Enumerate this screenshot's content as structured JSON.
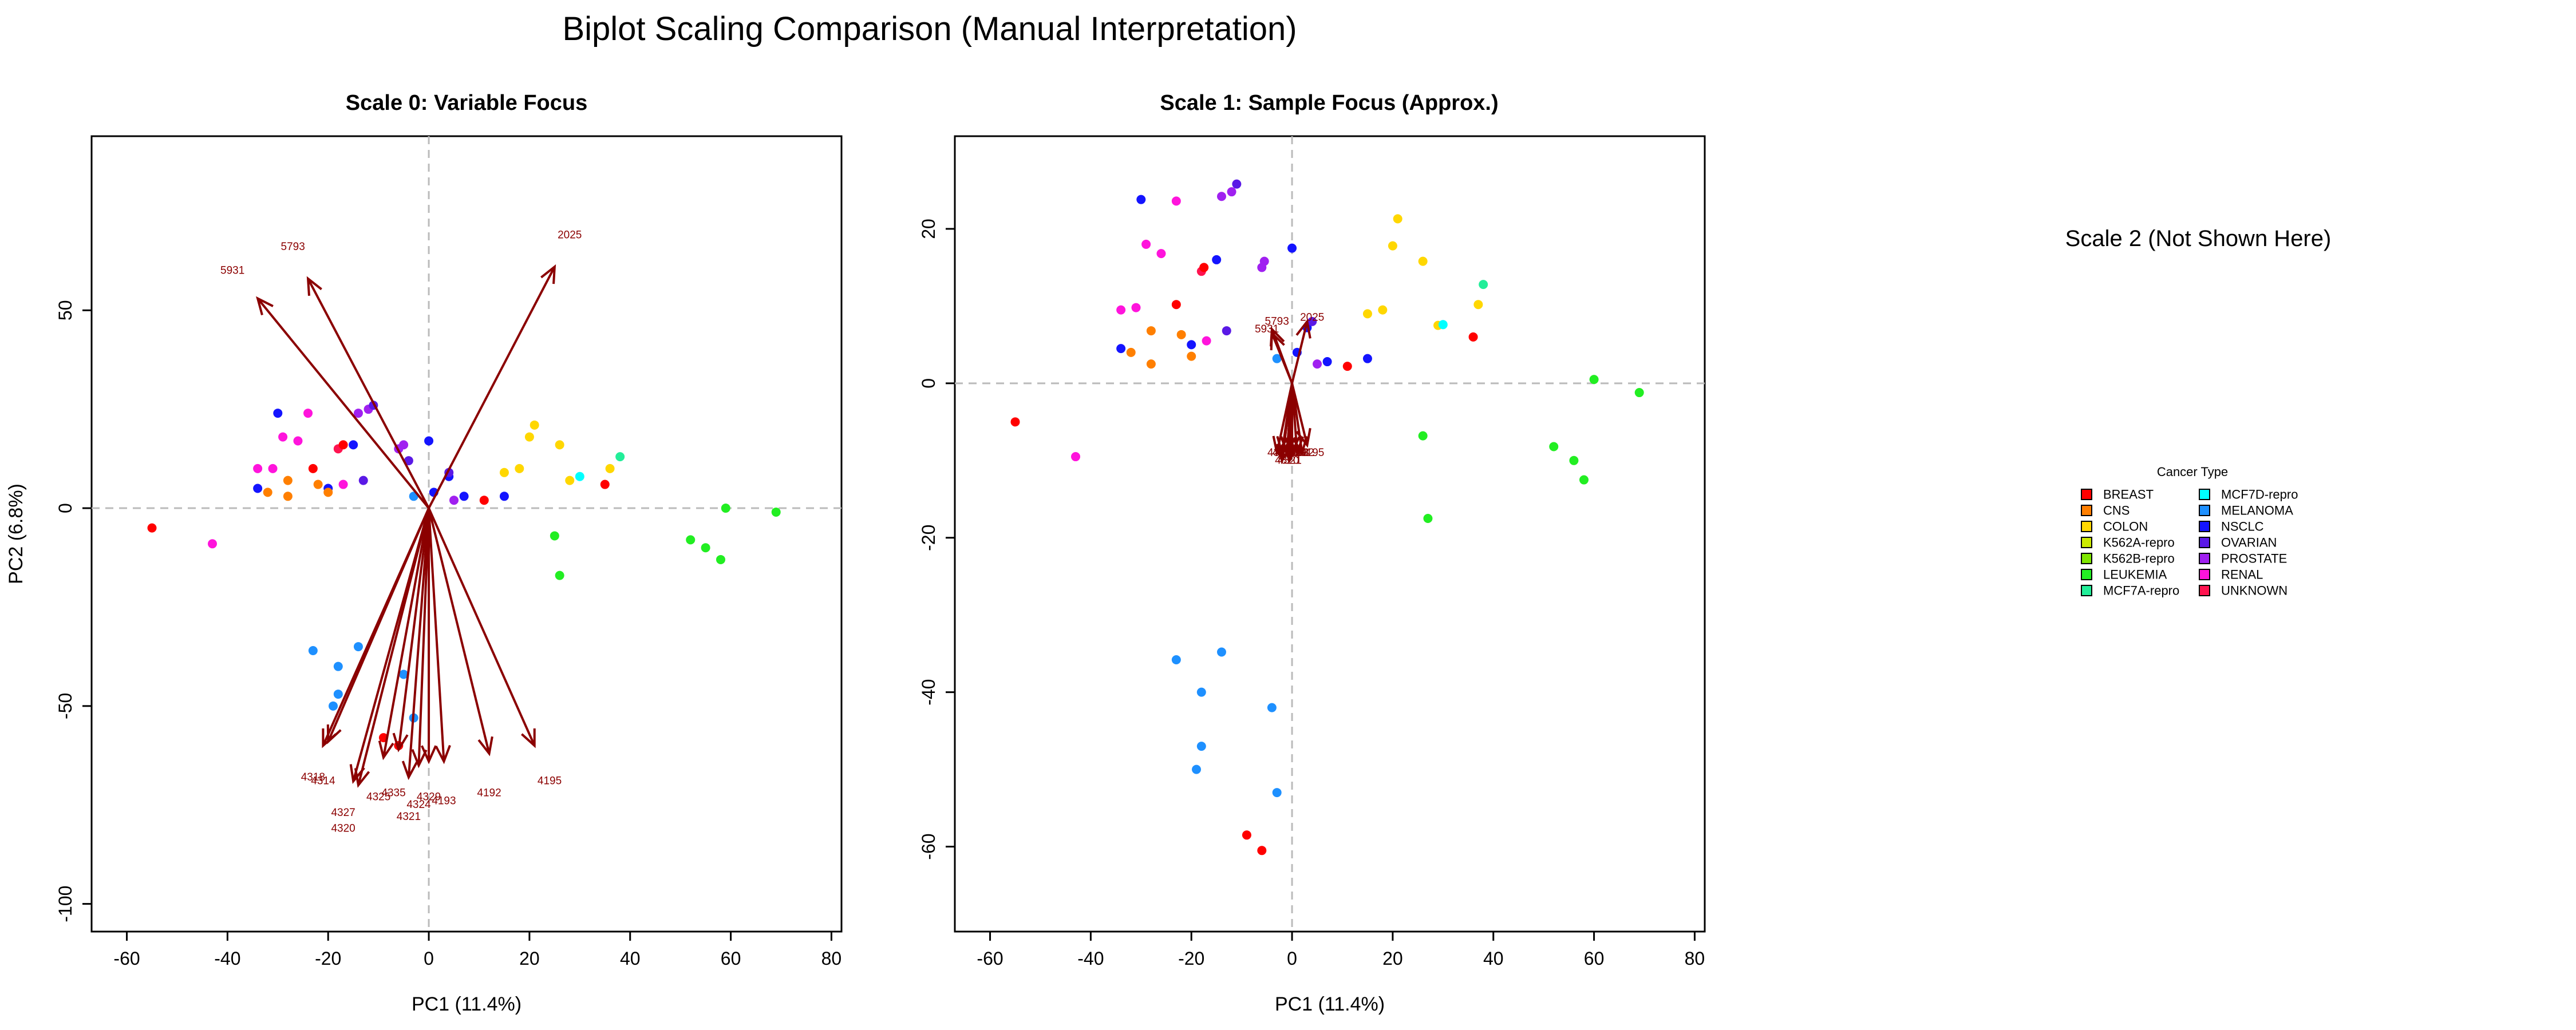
{
  "title": "Biplot Scaling Comparison (Manual Interpretation)",
  "placeholder_text": "Scale 2 (Not Shown Here)",
  "chart_data": [
    {
      "type": "scatter",
      "title": "Scale 0: Variable Focus",
      "xlabel": "PC1 (11.4%)",
      "ylabel": "PC2 (6.8%)",
      "xlim": [
        -67,
        82
      ],
      "ylim": [
        -107,
        94
      ],
      "xticks": [
        -60,
        -40,
        -20,
        0,
        20,
        40,
        60,
        80
      ],
      "yticks": [
        -100,
        -50,
        0,
        50
      ],
      "points": [
        {
          "x": -55,
          "y": -5,
          "c": "BREAST"
        },
        {
          "x": -43,
          "y": -9,
          "c": "RENAL"
        },
        {
          "x": -34,
          "y": 5,
          "c": "NSCLC"
        },
        {
          "x": -34,
          "y": 10,
          "c": "RENAL"
        },
        {
          "x": -32,
          "y": 4,
          "c": "CNS"
        },
        {
          "x": -31,
          "y": 10,
          "c": "RENAL"
        },
        {
          "x": -30,
          "y": 24,
          "c": "NSCLC"
        },
        {
          "x": -29,
          "y": 18,
          "c": "RENAL"
        },
        {
          "x": -28,
          "y": 7,
          "c": "CNS"
        },
        {
          "x": -28,
          "y": 3,
          "c": "CNS"
        },
        {
          "x": -26,
          "y": 17,
          "c": "RENAL"
        },
        {
          "x": -24,
          "y": 24,
          "c": "RENAL"
        },
        {
          "x": -23,
          "y": 10,
          "c": "BREAST"
        },
        {
          "x": -22,
          "y": 6,
          "c": "CNS"
        },
        {
          "x": -20,
          "y": 5,
          "c": "NSCLC"
        },
        {
          "x": -20,
          "y": 4,
          "c": "CNS"
        },
        {
          "x": -18,
          "y": 15,
          "c": "UNKNOWN"
        },
        {
          "x": -17,
          "y": 16,
          "c": "BREAST"
        },
        {
          "x": -17,
          "y": 6,
          "c": "RENAL"
        },
        {
          "x": -15,
          "y": 16,
          "c": "NSCLC"
        },
        {
          "x": -14,
          "y": 24,
          "c": "PROSTATE"
        },
        {
          "x": -13,
          "y": 7,
          "c": "OVARIAN"
        },
        {
          "x": -12,
          "y": 25,
          "c": "PROSTATE"
        },
        {
          "x": -11,
          "y": 26,
          "c": "OVARIAN"
        },
        {
          "x": -6,
          "y": 15,
          "c": "PROSTATE"
        },
        {
          "x": -5,
          "y": 16,
          "c": "PROSTATE"
        },
        {
          "x": -4,
          "y": 12,
          "c": "OVARIAN"
        },
        {
          "x": -3,
          "y": 3,
          "c": "MELANOMA"
        },
        {
          "x": 0,
          "y": 17,
          "c": "NSCLC"
        },
        {
          "x": 1,
          "y": 4,
          "c": "NSCLC"
        },
        {
          "x": 4,
          "y": 8,
          "c": "NSCLC"
        },
        {
          "x": 4,
          "y": 9,
          "c": "OVARIAN"
        },
        {
          "x": 5,
          "y": 2,
          "c": "PROSTATE"
        },
        {
          "x": 7,
          "y": 3,
          "c": "NSCLC"
        },
        {
          "x": 11,
          "y": 2,
          "c": "BREAST"
        },
        {
          "x": 15,
          "y": 3,
          "c": "NSCLC"
        },
        {
          "x": 15,
          "y": 9,
          "c": "COLON"
        },
        {
          "x": 18,
          "y": 10,
          "c": "COLON"
        },
        {
          "x": 20,
          "y": 18,
          "c": "COLON"
        },
        {
          "x": 21,
          "y": 21,
          "c": "COLON"
        },
        {
          "x": 26,
          "y": 16,
          "c": "COLON"
        },
        {
          "x": 28,
          "y": 7,
          "c": "COLON"
        },
        {
          "x": 30,
          "y": 8,
          "c": "MCF7D-repro"
        },
        {
          "x": 35,
          "y": 6,
          "c": "BREAST"
        },
        {
          "x": 36,
          "y": 10,
          "c": "COLON"
        },
        {
          "x": 38,
          "y": 13,
          "c": "MCF7A-repro"
        },
        {
          "x": 25,
          "y": -7,
          "c": "LEUKEMIA"
        },
        {
          "x": 26,
          "y": -17,
          "c": "LEUKEMIA"
        },
        {
          "x": 52,
          "y": -8,
          "c": "LEUKEMIA"
        },
        {
          "x": 55,
          "y": -10,
          "c": "LEUKEMIA"
        },
        {
          "x": 58,
          "y": -13,
          "c": "LEUKEMIA"
        },
        {
          "x": 59,
          "y": 0,
          "c": "LEUKEMIA"
        },
        {
          "x": 69,
          "y": -1,
          "c": "LEUKEMIA"
        },
        {
          "x": -23,
          "y": -36,
          "c": "MELANOMA"
        },
        {
          "x": -18,
          "y": -40,
          "c": "MELANOMA"
        },
        {
          "x": -14,
          "y": -35,
          "c": "MELANOMA"
        },
        {
          "x": -18,
          "y": -47,
          "c": "MELANOMA"
        },
        {
          "x": -19,
          "y": -50,
          "c": "MELANOMA"
        },
        {
          "x": -5,
          "y": -42,
          "c": "MELANOMA"
        },
        {
          "x": -3,
          "y": -53,
          "c": "MELANOMA"
        },
        {
          "x": -9,
          "y": -58,
          "c": "BREAST"
        },
        {
          "x": -6,
          "y": -60,
          "c": "BREAST"
        }
      ],
      "arrows": [
        {
          "x": -34,
          "y": 53,
          "label": "5931",
          "lx": -39,
          "ly": 60
        },
        {
          "x": -24,
          "y": 58,
          "label": "5793",
          "lx": -27,
          "ly": 66
        },
        {
          "x": 25,
          "y": 61,
          "label": "2025",
          "lx": 28,
          "ly": 69
        },
        {
          "x": -21,
          "y": -60,
          "label": "4318",
          "lx": -23,
          "ly": -68
        },
        {
          "x": -20,
          "y": -59,
          "label": "4314",
          "lx": -21,
          "ly": -69
        },
        {
          "x": -14,
          "y": -70,
          "label": "4327",
          "lx": -17,
          "ly": -77
        },
        {
          "x": -15,
          "y": -69,
          "label": "4320",
          "lx": -17,
          "ly": -81
        },
        {
          "x": -9,
          "y": -63,
          "label": "4325",
          "lx": -10,
          "ly": -73
        },
        {
          "x": -6,
          "y": -61,
          "label": "4335",
          "lx": -7,
          "ly": -72
        },
        {
          "x": -4,
          "y": -68,
          "label": "4321",
          "lx": -4,
          "ly": -78
        },
        {
          "x": -2,
          "y": -65,
          "label": "4324",
          "lx": -2,
          "ly": -75
        },
        {
          "x": 0,
          "y": -64,
          "label": "4329",
          "lx": 0,
          "ly": -73
        },
        {
          "x": 3,
          "y": -64,
          "label": "4193",
          "lx": 3,
          "ly": -74
        },
        {
          "x": 12,
          "y": -62,
          "label": "4192",
          "lx": 12,
          "ly": -72
        },
        {
          "x": 21,
          "y": -60,
          "label": "4195",
          "lx": 24,
          "ly": -69
        }
      ]
    },
    {
      "type": "scatter",
      "title": "Scale 1: Sample Focus (Approx.)",
      "xlabel": "PC1 (11.4%)",
      "ylabel": "",
      "xlim": [
        -67,
        82
      ],
      "ylim": [
        -71,
        32
      ],
      "xticks": [
        -60,
        -40,
        -20,
        0,
        20,
        40,
        60,
        80
      ],
      "yticks": [
        -60,
        -40,
        -20,
        0,
        20
      ],
      "points": [
        {
          "x": -55,
          "y": -5,
          "c": "BREAST"
        },
        {
          "x": -43,
          "y": -9.5,
          "c": "RENAL"
        },
        {
          "x": -34,
          "y": 4.5,
          "c": "NSCLC"
        },
        {
          "x": -34,
          "y": 9.5,
          "c": "RENAL"
        },
        {
          "x": -32,
          "y": 4,
          "c": "CNS"
        },
        {
          "x": -31,
          "y": 9.8,
          "c": "RENAL"
        },
        {
          "x": -30,
          "y": 23.8,
          "c": "NSCLC"
        },
        {
          "x": -29,
          "y": 18,
          "c": "RENAL"
        },
        {
          "x": -28,
          "y": 6.8,
          "c": "CNS"
        },
        {
          "x": -28,
          "y": 2.5,
          "c": "CNS"
        },
        {
          "x": -26,
          "y": 16.8,
          "c": "RENAL"
        },
        {
          "x": -23,
          "y": 23.6,
          "c": "RENAL"
        },
        {
          "x": -23,
          "y": 10.2,
          "c": "BREAST"
        },
        {
          "x": -22,
          "y": 6.3,
          "c": "CNS"
        },
        {
          "x": -20,
          "y": 5,
          "c": "NSCLC"
        },
        {
          "x": -20,
          "y": 3.5,
          "c": "CNS"
        },
        {
          "x": -18,
          "y": 14.5,
          "c": "UNKNOWN"
        },
        {
          "x": -17.5,
          "y": 15,
          "c": "BREAST"
        },
        {
          "x": -17,
          "y": 5.5,
          "c": "RENAL"
        },
        {
          "x": -15,
          "y": 16,
          "c": "NSCLC"
        },
        {
          "x": -14,
          "y": 24.2,
          "c": "PROSTATE"
        },
        {
          "x": -13,
          "y": 6.8,
          "c": "OVARIAN"
        },
        {
          "x": -12,
          "y": 24.8,
          "c": "PROSTATE"
        },
        {
          "x": -11,
          "y": 25.8,
          "c": "OVARIAN"
        },
        {
          "x": -6,
          "y": 15,
          "c": "PROSTATE"
        },
        {
          "x": -5.5,
          "y": 15.8,
          "c": "PROSTATE"
        },
        {
          "x": -3,
          "y": 3.2,
          "c": "MELANOMA"
        },
        {
          "x": 0,
          "y": 17.5,
          "c": "NSCLC"
        },
        {
          "x": 1,
          "y": 4,
          "c": "NSCLC"
        },
        {
          "x": 3,
          "y": 7.2,
          "c": "NSCLC"
        },
        {
          "x": 4,
          "y": 8,
          "c": "OVARIAN"
        },
        {
          "x": 5,
          "y": 2.5,
          "c": "PROSTATE"
        },
        {
          "x": 7,
          "y": 2.8,
          "c": "NSCLC"
        },
        {
          "x": 11,
          "y": 2.2,
          "c": "BREAST"
        },
        {
          "x": 15,
          "y": 3.2,
          "c": "NSCLC"
        },
        {
          "x": 15,
          "y": 9,
          "c": "COLON"
        },
        {
          "x": 18,
          "y": 9.5,
          "c": "COLON"
        },
        {
          "x": 20,
          "y": 17.8,
          "c": "COLON"
        },
        {
          "x": 21,
          "y": 21.3,
          "c": "COLON"
        },
        {
          "x": 26,
          "y": 15.8,
          "c": "COLON"
        },
        {
          "x": 29,
          "y": 7.5,
          "c": "COLON"
        },
        {
          "x": 30,
          "y": 7.6,
          "c": "MCF7D-repro"
        },
        {
          "x": 36,
          "y": 6,
          "c": "BREAST"
        },
        {
          "x": 37,
          "y": 10.2,
          "c": "COLON"
        },
        {
          "x": 38,
          "y": 12.8,
          "c": "MCF7A-repro"
        },
        {
          "x": 26,
          "y": -6.8,
          "c": "LEUKEMIA"
        },
        {
          "x": 27,
          "y": -17.5,
          "c": "LEUKEMIA"
        },
        {
          "x": 52,
          "y": -8.2,
          "c": "LEUKEMIA"
        },
        {
          "x": 56,
          "y": -10,
          "c": "LEUKEMIA"
        },
        {
          "x": 58,
          "y": -12.5,
          "c": "LEUKEMIA"
        },
        {
          "x": 60,
          "y": 0.5,
          "c": "LEUKEMIA"
        },
        {
          "x": 69,
          "y": -1.2,
          "c": "LEUKEMIA"
        },
        {
          "x": -23,
          "y": -35.8,
          "c": "MELANOMA"
        },
        {
          "x": -18,
          "y": -40,
          "c": "MELANOMA"
        },
        {
          "x": -14,
          "y": -34.8,
          "c": "MELANOMA"
        },
        {
          "x": -18,
          "y": -47,
          "c": "MELANOMA"
        },
        {
          "x": -19,
          "y": -50,
          "c": "MELANOMA"
        },
        {
          "x": -4,
          "y": -42,
          "c": "MELANOMA"
        },
        {
          "x": -3,
          "y": -53,
          "c": "MELANOMA"
        },
        {
          "x": -9,
          "y": -58.5,
          "c": "BREAST"
        },
        {
          "x": -6,
          "y": -60.5,
          "c": "BREAST"
        }
      ],
      "arrows": [
        {
          "x": -4,
          "y": 7,
          "label": "5793",
          "lx": -3,
          "ly": 8
        },
        {
          "x": -4,
          "y": 6.5,
          "label": "5931",
          "lx": -5,
          "ly": 7
        },
        {
          "x": 3,
          "y": 8,
          "label": "2025",
          "lx": 4,
          "ly": 8.5
        },
        {
          "x": -3,
          "y": -9,
          "label": "4318",
          "lx": -2.5,
          "ly": -9
        },
        {
          "x": -2,
          "y": -9,
          "label": "4314",
          "lx": -1.5,
          "ly": -9
        },
        {
          "x": -2,
          "y": -10,
          "label": "4327",
          "lx": -1.5,
          "ly": -9
        },
        {
          "x": -2,
          "y": -10,
          "label": "4320",
          "lx": -1,
          "ly": -10
        },
        {
          "x": -1,
          "y": -9,
          "label": "4325",
          "lx": -1,
          "ly": -9
        },
        {
          "x": -1,
          "y": -9,
          "label": "4335",
          "lx": -0.5,
          "ly": -9
        },
        {
          "x": -0.5,
          "y": -10,
          "label": "4321",
          "lx": -0.5,
          "ly": -10
        },
        {
          "x": 0,
          "y": -9,
          "label": "4324",
          "lx": 0,
          "ly": -9
        },
        {
          "x": 0,
          "y": -9,
          "label": "4329",
          "lx": 0.5,
          "ly": -9
        },
        {
          "x": 1,
          "y": -9,
          "label": "4193",
          "lx": 1,
          "ly": -9
        },
        {
          "x": 2,
          "y": -9,
          "label": "4192",
          "lx": 2,
          "ly": -9
        },
        {
          "x": 3,
          "y": -8,
          "label": "4195",
          "lx": 4,
          "ly": -9
        }
      ]
    }
  ],
  "legend": {
    "title": "Cancer Type",
    "items": [
      {
        "label": "BREAST",
        "color": "#FF0000"
      },
      {
        "label": "CNS",
        "color": "#FF7F00"
      },
      {
        "label": "COLON",
        "color": "#FFD700"
      },
      {
        "label": "K562A-repro",
        "color": "#CCEB00"
      },
      {
        "label": "K562B-repro",
        "color": "#7FE600"
      },
      {
        "label": "LEUKEMIA",
        "color": "#22EE22"
      },
      {
        "label": "MCF7A-repro",
        "color": "#22EE99"
      },
      {
        "label": "MCF7D-repro",
        "color": "#00FFFF"
      },
      {
        "label": "MELANOMA",
        "color": "#1E90FF"
      },
      {
        "label": "NSCLC",
        "color": "#1414FF"
      },
      {
        "label": "OVARIAN",
        "color": "#5A19E6"
      },
      {
        "label": "PROSTATE",
        "color": "#A020F0"
      },
      {
        "label": "RENAL",
        "color": "#FF14DC"
      },
      {
        "label": "UNKNOWN",
        "color": "#FF1450"
      }
    ]
  },
  "arrow_color": "#8B0000"
}
